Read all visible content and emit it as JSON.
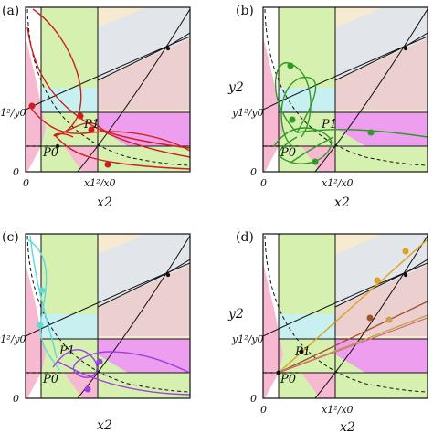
{
  "figure": {
    "panels": [
      {
        "id": "a",
        "label": "(a)",
        "ylabel": "",
        "xlabel": "x2",
        "ytick": "y1²/y0",
        "xtick": "x1²/x0",
        "zero_x": "0",
        "zero_y": "0",
        "p0": "P0",
        "p1": "P1",
        "curve_color": "#cc1f1f"
      },
      {
        "id": "b",
        "label": "(b)",
        "ylabel": "y2",
        "xlabel": "x2",
        "ytick": "y1²/y0",
        "xtick": "x1²/x0",
        "zero_x": "0",
        "zero_y": "0",
        "p0": "P0",
        "p1": "P1",
        "curve_color": "#2e9a24"
      },
      {
        "id": "c",
        "label": "(c)",
        "ylabel": "",
        "xlabel": "x2",
        "ytick": "y1²/y0",
        "xtick": "",
        "zero_x": "0",
        "zero_y": "0",
        "p0": "P0",
        "p1": "P1",
        "curve_color": "#9a3fe0",
        "curve_color_2": "#5fd8d8"
      },
      {
        "id": "d",
        "label": "(d)",
        "ylabel": "y2",
        "xlabel": "x2",
        "ytick": "y1²/y0",
        "xtick": "x1²/x0",
        "zero_x": "0",
        "zero_y": "0",
        "p0": "P0",
        "p1": "P1",
        "curve_color": "#e0a020",
        "curve_color_2": "#a0522d"
      }
    ],
    "region_colors": {
      "green": "#d6f0b0",
      "pink": "#f7b8d2",
      "cyan": "#c8f0f0",
      "peach": "#f6ead0",
      "gray": "#e2e6ea",
      "rose": "#ecd0d0",
      "magenta": "#ee9eee"
    }
  }
}
